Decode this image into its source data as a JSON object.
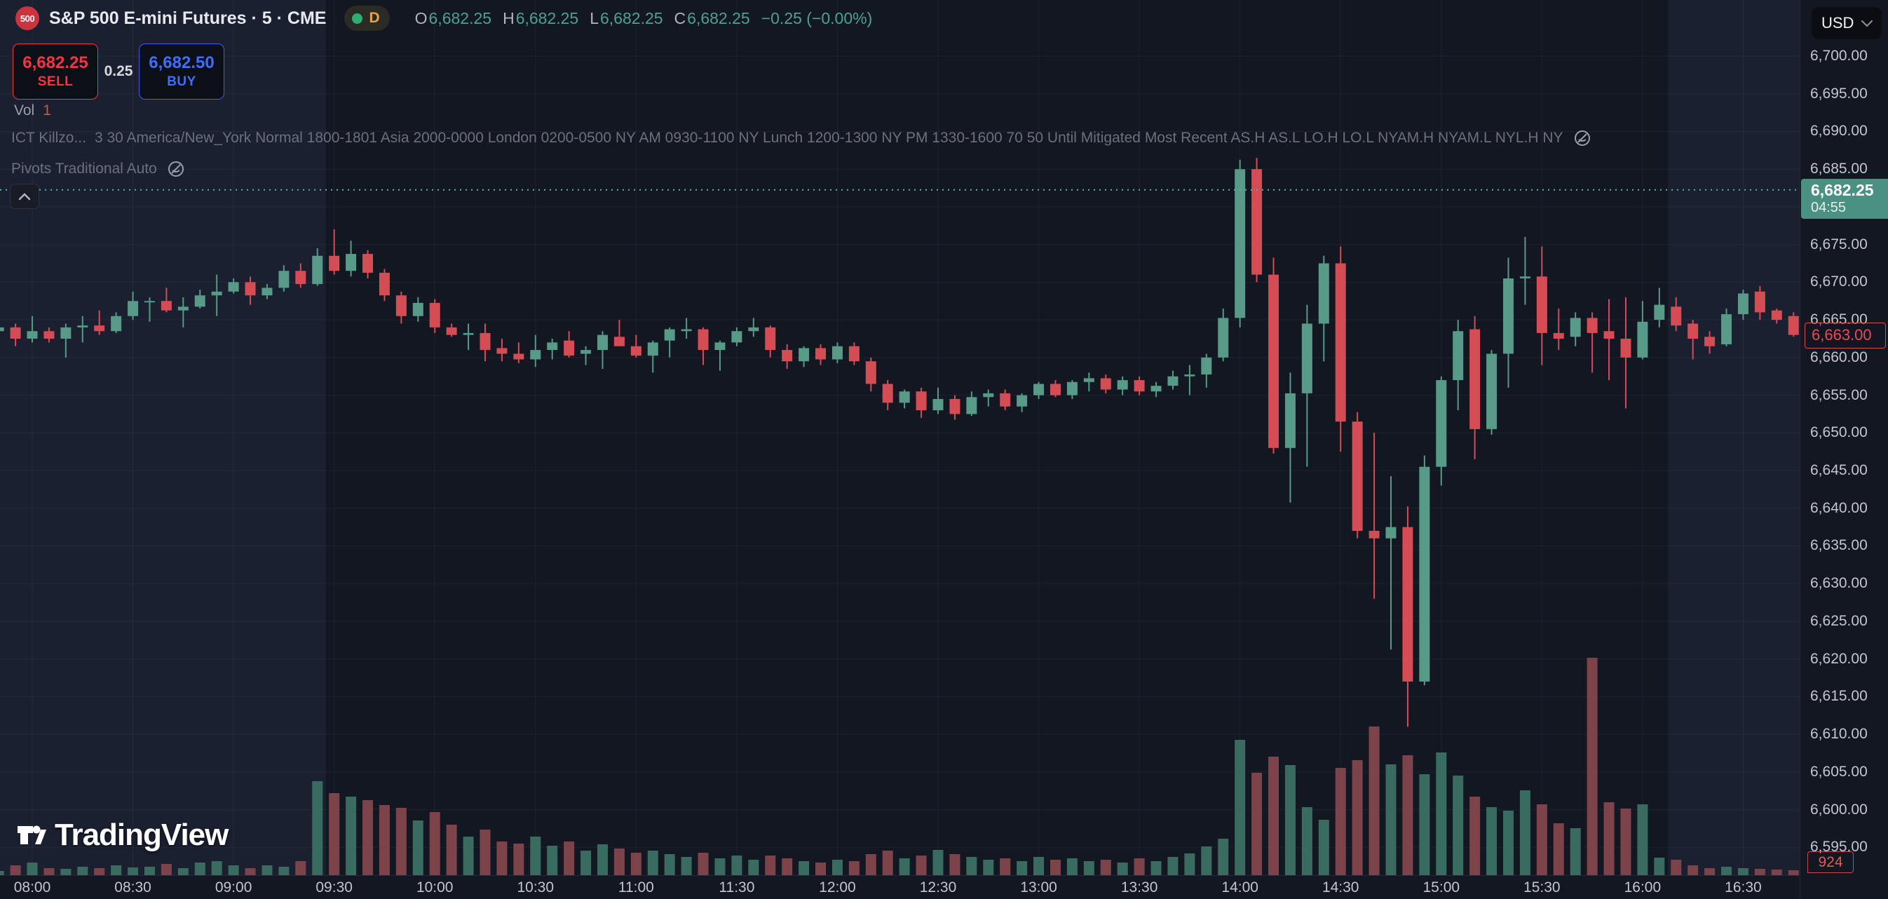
{
  "header": {
    "symbol_badge": "500",
    "symbol_title": "S&P 500 E-mini Futures · 5 · CME",
    "interval_pill": {
      "label": "D"
    },
    "ohlc": {
      "o_label": "O",
      "o": "6,682.25",
      "h_label": "H",
      "h": "6,682.25",
      "l_label": "L",
      "l": "6,682.25",
      "c_label": "C",
      "c": "6,682.25",
      "change": "−0.25 (−0.00%)"
    },
    "sell_button": {
      "price": "6,682.25",
      "label": "SELL"
    },
    "spread": "0.25",
    "buy_button": {
      "price": "6,682.50",
      "label": "BUY"
    },
    "volume_row": {
      "label": "Vol",
      "value": "1"
    },
    "indicators": [
      {
        "name": "ICT Killzo...",
        "params": "3 30 America/New_York Normal 1800-1801 Asia 2000-0000 London 0200-0500 NY AM 0930-1100 NY Lunch 1200-1300 NY PM 1330-1600 70 50 Until Mitigated Most Recent AS.H AS.L LO.H LO.L NYAM.H NYAM.L NYL.H NY"
      },
      {
        "name": "Pivots Traditional Auto",
        "params": ""
      }
    ]
  },
  "price_scale": {
    "currency": "USD",
    "last_price_label": {
      "price": "6,682.25",
      "countdown": "04:55"
    },
    "prev_price_label": "6,663.00",
    "volume_value": "924"
  },
  "watermark": "TradingView",
  "colors": {
    "background": "#131722",
    "session_band": "rgba(128,152,220,0.07)",
    "grid": "rgba(174,184,222,0.07)",
    "up": "#569a87",
    "down": "#d44c54",
    "vol_up": "#3a6b61",
    "vol_down": "#7d434b",
    "price_line": "#5fb3a3",
    "sell_red": "#f23645",
    "buy_blue": "#3f6ffa",
    "label_green_bg": "#4a9181"
  },
  "chart_data": {
    "type": "candlestick+volume",
    "title": "S&P 500 E-mini Futures, 5-minute, CME",
    "legend_position": "top-left",
    "grid": {
      "min": 6595,
      "max": 6700,
      "step": 5
    },
    "price_ticks": [
      6700,
      6695,
      6690,
      6685,
      6675,
      6670,
      6665,
      6660,
      6655,
      6650,
      6645,
      6640,
      6635,
      6630,
      6625,
      6620,
      6615,
      6610,
      6605,
      6600,
      6595
    ],
    "time_ticks": [
      "08:00",
      "08:30",
      "09:00",
      "09:30",
      "10:00",
      "10:30",
      "11:00",
      "11:30",
      "12:00",
      "12:30",
      "13:00",
      "13:30",
      "14:00",
      "14:30",
      "15:00",
      "15:30",
      "16:00",
      "16:30"
    ],
    "session_bands": [
      {
        "from": "start",
        "to": "09:30"
      },
      {
        "from": "16:10",
        "to": "end"
      }
    ],
    "last_price": 6682.25,
    "last_series_price": 6663.0,
    "volume_units": "relative",
    "candles": [
      [
        "07:50",
        6663.5,
        6664.25,
        6662.75,
        6664,
        6
      ],
      [
        "07:55",
        6664,
        6664.5,
        6661.5,
        6662.5,
        14
      ],
      [
        "08:00",
        6662.5,
        6665.5,
        6662,
        6663.5,
        18
      ],
      [
        "08:05",
        6663.5,
        6664,
        6662,
        6662.5,
        10
      ],
      [
        "08:10",
        6662.5,
        6664.5,
        6660,
        6664,
        9
      ],
      [
        "08:15",
        6664,
        6665.5,
        6662,
        6664.25,
        12
      ],
      [
        "08:20",
        6664.25,
        6666.25,
        6663,
        6663.5,
        10
      ],
      [
        "08:25",
        6663.5,
        6666,
        6663.25,
        6665.5,
        14
      ],
      [
        "08:30",
        6665.5,
        6668.75,
        6665,
        6667.5,
        11
      ],
      [
        "08:35",
        6667.5,
        6668,
        6664.75,
        6667.5,
        12
      ],
      [
        "08:40",
        6667.5,
        6669.25,
        6666,
        6666.25,
        16
      ],
      [
        "08:45",
        6666.25,
        6668,
        6664,
        6666.75,
        10
      ],
      [
        "08:50",
        6666.75,
        6669,
        6666.5,
        6668.25,
        18
      ],
      [
        "08:55",
        6668.25,
        6671,
        6665.5,
        6668.75,
        20
      ],
      [
        "09:00",
        6668.75,
        6670.5,
        6668.5,
        6670,
        14
      ],
      [
        "09:05",
        6670,
        6670.75,
        6667,
        6668.25,
        10
      ],
      [
        "09:10",
        6668.25,
        6669.75,
        6667.75,
        6669.25,
        14
      ],
      [
        "09:15",
        6669.25,
        6672.25,
        6668.75,
        6671.5,
        12
      ],
      [
        "09:20",
        6671.5,
        6672.5,
        6669.25,
        6669.75,
        20
      ],
      [
        "09:25",
        6669.75,
        6674.5,
        6669.5,
        6673.5,
        134
      ],
      [
        "09:30",
        6673.5,
        6677,
        6671,
        6671.5,
        117
      ],
      [
        "09:35",
        6671.5,
        6675.5,
        6670.75,
        6673.75,
        112
      ],
      [
        "09:40",
        6673.75,
        6674.25,
        6670.5,
        6671.25,
        107
      ],
      [
        "09:45",
        6671.25,
        6671.75,
        6667.5,
        6668.25,
        100
      ],
      [
        "09:50",
        6668.25,
        6668.75,
        6664.5,
        6665.5,
        96
      ],
      [
        "09:55",
        6665.5,
        6668,
        6664.75,
        6667.25,
        78
      ],
      [
        "10:00",
        6667.25,
        6667.75,
        6663.25,
        6664,
        90
      ],
      [
        "10:05",
        6664,
        6664.5,
        6662.75,
        6663,
        72
      ],
      [
        "10:10",
        6663,
        6664.5,
        6661,
        6663.25,
        55
      ],
      [
        "10:15",
        6663.25,
        6664.5,
        6659.5,
        6661,
        65
      ],
      [
        "10:20",
        6661.25,
        6662.5,
        6659.5,
        6660.5,
        48
      ],
      [
        "10:25",
        6660.5,
        6662,
        6659.25,
        6659.75,
        45
      ],
      [
        "10:30",
        6659.75,
        6663,
        6658.75,
        6661,
        55
      ],
      [
        "10:35",
        6661,
        6662.5,
        6659.75,
        6662,
        42
      ],
      [
        "10:40",
        6662.25,
        6663.5,
        6660,
        6660.25,
        48
      ],
      [
        "10:45",
        6660.5,
        6661.5,
        6659,
        6661,
        35
      ],
      [
        "10:50",
        6661,
        6663.5,
        6658.5,
        6663,
        44
      ],
      [
        "10:55",
        6662.75,
        6665,
        6661.5,
        6661.5,
        38
      ],
      [
        "11:00",
        6661.5,
        6663,
        6660,
        6660.25,
        32
      ],
      [
        "11:05",
        6660.25,
        6662.25,
        6658,
        6662,
        35
      ],
      [
        "11:10",
        6662.25,
        6664,
        6660,
        6663.75,
        30
      ],
      [
        "11:15",
        6663.5,
        6665.25,
        6662.5,
        6663.75,
        26
      ],
      [
        "11:20",
        6663.75,
        6664,
        6659,
        6661,
        32
      ],
      [
        "11:25",
        6661,
        6662.25,
        6658.25,
        6662,
        24
      ],
      [
        "11:30",
        6662,
        6664,
        6661.5,
        6663.5,
        28
      ],
      [
        "11:35",
        6663.5,
        6665.25,
        6662.75,
        6664,
        22
      ],
      [
        "11:40",
        6664,
        6664.25,
        6660,
        6661,
        28
      ],
      [
        "11:45",
        6661,
        6661.75,
        6658.5,
        6659.5,
        24
      ],
      [
        "11:50",
        6659.5,
        6661.5,
        6658.75,
        6661.25,
        20
      ],
      [
        "11:55",
        6661.25,
        6661.75,
        6659,
        6659.75,
        18
      ],
      [
        "12:00",
        6659.75,
        6662,
        6659.25,
        6661.5,
        22
      ],
      [
        "12:05",
        6661.5,
        6662,
        6659,
        6659.5,
        20
      ],
      [
        "12:10",
        6659.5,
        6660,
        6655.5,
        6656.5,
        30
      ],
      [
        "12:15",
        6656.5,
        6657,
        6653,
        6654,
        35
      ],
      [
        "12:20",
        6654,
        6655.75,
        6653.25,
        6655.5,
        24
      ],
      [
        "12:25",
        6655.5,
        6656,
        6652,
        6653,
        28
      ],
      [
        "12:30",
        6653,
        6656,
        6652.5,
        6654.5,
        36
      ],
      [
        "12:35",
        6654.5,
        6655,
        6651.75,
        6652.5,
        30
      ],
      [
        "12:40",
        6652.5,
        6655.5,
        6652.25,
        6654.75,
        26
      ],
      [
        "12:45",
        6654.75,
        6655.75,
        6653.5,
        6655.25,
        22
      ],
      [
        "12:50",
        6655.25,
        6655.75,
        6653,
        6653.5,
        24
      ],
      [
        "12:55",
        6653.5,
        6655.25,
        6652.75,
        6655,
        20
      ],
      [
        "13:00",
        6655,
        6656.75,
        6654.5,
        6656.5,
        26
      ],
      [
        "13:05",
        6656.5,
        6657,
        6654.75,
        6655,
        22
      ],
      [
        "13:10",
        6655,
        6657,
        6654.5,
        6656.75,
        24
      ],
      [
        "13:15",
        6656.75,
        6658,
        6655.5,
        6657.25,
        20
      ],
      [
        "13:20",
        6657.25,
        6657.75,
        6655.25,
        6655.75,
        22
      ],
      [
        "13:25",
        6655.75,
        6657.5,
        6655,
        6657,
        18
      ],
      [
        "13:30",
        6657,
        6657.5,
        6655,
        6655.5,
        24
      ],
      [
        "13:35",
        6655.5,
        6656.75,
        6654.75,
        6656.25,
        20
      ],
      [
        "13:40",
        6656.25,
        6658.25,
        6655.75,
        6657.5,
        26
      ],
      [
        "13:45",
        6657.5,
        6659,
        6655,
        6657.75,
        31
      ],
      [
        "13:50",
        6657.75,
        6660.5,
        6656,
        6660,
        41
      ],
      [
        "13:55",
        6660,
        6666.5,
        6659.5,
        6665.25,
        52
      ],
      [
        "14:00",
        6665.25,
        6686.25,
        6664,
        6685,
        193
      ],
      [
        "14:05",
        6685,
        6686.5,
        6670,
        6671,
        146
      ],
      [
        "14:10",
        6671,
        6673.25,
        6647.25,
        6648,
        169
      ],
      [
        "14:15",
        6648,
        6658,
        6640.75,
        6655.25,
        157
      ],
      [
        "14:20",
        6655.25,
        6667,
        6645.5,
        6664.5,
        97
      ],
      [
        "14:25",
        6664.5,
        6673.5,
        6659.5,
        6672.5,
        79
      ],
      [
        "14:30",
        6672.5,
        6674.75,
        6647.5,
        6651.5,
        153
      ],
      [
        "14:35",
        6651.5,
        6652.75,
        6636,
        6637,
        164
      ],
      [
        "14:40",
        6637,
        6650,
        6628,
        6636,
        212
      ],
      [
        "14:45",
        6636,
        6644.25,
        6621.25,
        6637.5,
        158
      ],
      [
        "14:50",
        6637.5,
        6640.25,
        6611,
        6617,
        171
      ],
      [
        "14:55",
        6617,
        6647,
        6616.5,
        6645.5,
        144
      ],
      [
        "15:00",
        6645.5,
        6657.5,
        6643,
        6657,
        175
      ],
      [
        "15:05",
        6657,
        6665,
        6653,
        6663.5,
        142
      ],
      [
        "15:10",
        6663.75,
        6665.5,
        6646.5,
        6650.5,
        112
      ],
      [
        "15:15",
        6650.5,
        6661,
        6649.75,
        6660.5,
        97
      ],
      [
        "15:20",
        6660.5,
        6673.25,
        6656,
        6670.5,
        92
      ],
      [
        "15:25",
        6670.5,
        6676,
        6667,
        6670.75,
        121
      ],
      [
        "15:30",
        6670.75,
        6674.75,
        6659,
        6663.25,
        101
      ],
      [
        "15:35",
        6663.25,
        6666.5,
        6661,
        6662.5,
        74
      ],
      [
        "15:40",
        6662.75,
        6666,
        6661.5,
        6665.25,
        67
      ],
      [
        "15:45",
        6665.25,
        6666,
        6658,
        6663.25,
        310
      ],
      [
        "15:50",
        6663.5,
        6667.75,
        6657,
        6662.5,
        104
      ],
      [
        "15:55",
        6662.5,
        6668,
        6653.25,
        6660,
        95
      ],
      [
        "16:00",
        6660,
        6667.5,
        6659.75,
        6664.75,
        101
      ],
      [
        "16:05",
        6665,
        6669.25,
        6664,
        6667,
        25
      ],
      [
        "16:10",
        6666.75,
        6668,
        6663.5,
        6664.25,
        22
      ],
      [
        "16:15",
        6664.5,
        6665,
        6659.75,
        6662.5,
        14
      ],
      [
        "16:20",
        6662.75,
        6663.5,
        6660.5,
        6661.5,
        10
      ],
      [
        "16:25",
        6661.75,
        6666.5,
        6661.5,
        6665.75,
        12
      ],
      [
        "16:30",
        6665.75,
        6669,
        6665,
        6668.5,
        10
      ],
      [
        "16:35",
        6668.75,
        6669.5,
        6665,
        6666,
        9
      ],
      [
        "16:40",
        6666.25,
        6666.5,
        6664.5,
        6665,
        8
      ],
      [
        "16:45",
        6665.5,
        6666,
        6662.75,
        6663,
        7
      ]
    ]
  }
}
